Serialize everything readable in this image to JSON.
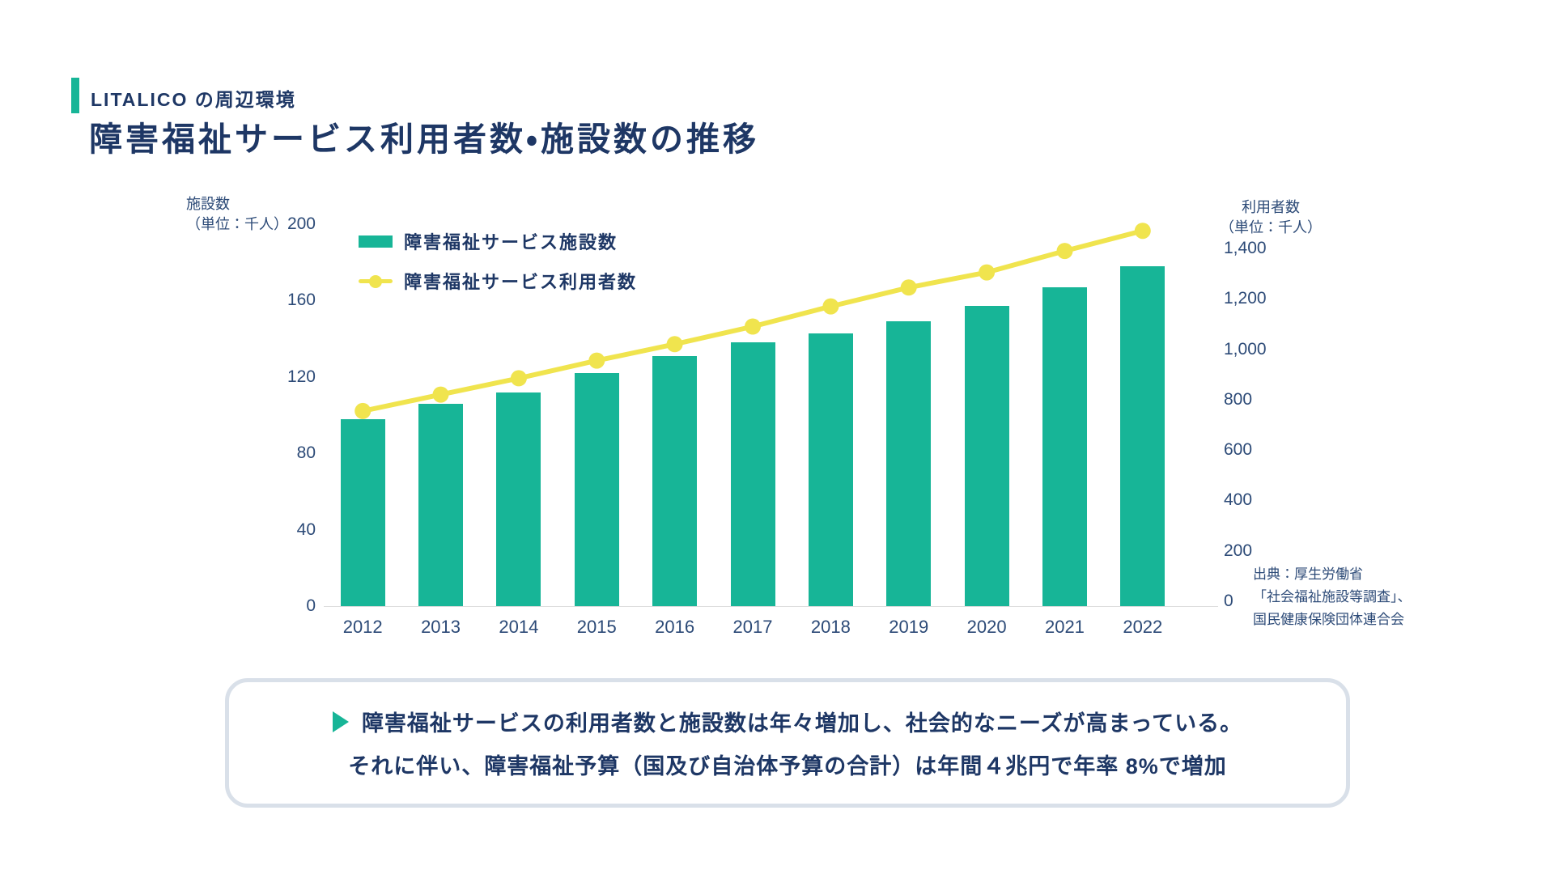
{
  "header": {
    "kicker": "LITALICO の周辺環境",
    "title": "障害福祉サービス利用者数・施設数の推移"
  },
  "colors": {
    "teal": "#17B597",
    "yellow": "#F0E44E",
    "navy": "#1E3765",
    "navy_soft": "#2C4A77"
  },
  "chart_data": {
    "type": "bar+line combo",
    "categories": [
      "2012",
      "2013",
      "2014",
      "2015",
      "2016",
      "2017",
      "2018",
      "2019",
      "2020",
      "2021",
      "2022"
    ],
    "series": [
      {
        "name": "障害福祉サービス施設数",
        "type": "bar",
        "axis": "left",
        "color": "#17B597",
        "values": [
          98,
          106,
          112,
          122,
          131,
          138,
          143,
          149,
          157,
          167,
          178
        ]
      },
      {
        "name": "障害福祉サービス利用者数",
        "type": "line",
        "axis": "right",
        "color": "#F0E44E",
        "values": [
          755,
          820,
          885,
          955,
          1020,
          1090,
          1170,
          1245,
          1305,
          1390,
          1470
        ]
      }
    ],
    "left_axis": {
      "label_line1": "施設数",
      "label_line2": "（単位：千人）",
      "max": 200,
      "ticks": [
        {
          "label": "0",
          "value": 0
        },
        {
          "label": "40",
          "value": 40
        },
        {
          "label": "80",
          "value": 80
        },
        {
          "label": "120",
          "value": 120
        },
        {
          "label": "160",
          "value": 160
        },
        {
          "label": "200",
          "value": 200
        }
      ]
    },
    "right_axis": {
      "label_line1": "利用者数",
      "label_line2": "（単位：千人）",
      "max": 1400,
      "ticks": [
        {
          "label": "0",
          "value": 0
        },
        {
          "label": "200",
          "value": 200
        },
        {
          "label": "400",
          "value": 400
        },
        {
          "label": "600",
          "value": 600
        },
        {
          "label": "800",
          "value": 800
        },
        {
          "label": "1,000",
          "value": 1000
        },
        {
          "label": "1,200",
          "value": 1200
        },
        {
          "label": "1,400",
          "value": 1400
        }
      ]
    },
    "legend_position": "top-left inside plot",
    "grid": false,
    "source_lines": [
      "出典：厚生労働省",
      "「社会福祉施設等調査」、",
      "国民健康保険団体連合会"
    ]
  },
  "callout": {
    "line1": "障害福祉サービスの利用者数と施設数は年々増加し、社会的なニーズが高まっている。",
    "line2": "それに伴い、障害福祉予算（国及び自治体予算の合計）は年間４兆円で年率 8%で増加"
  }
}
